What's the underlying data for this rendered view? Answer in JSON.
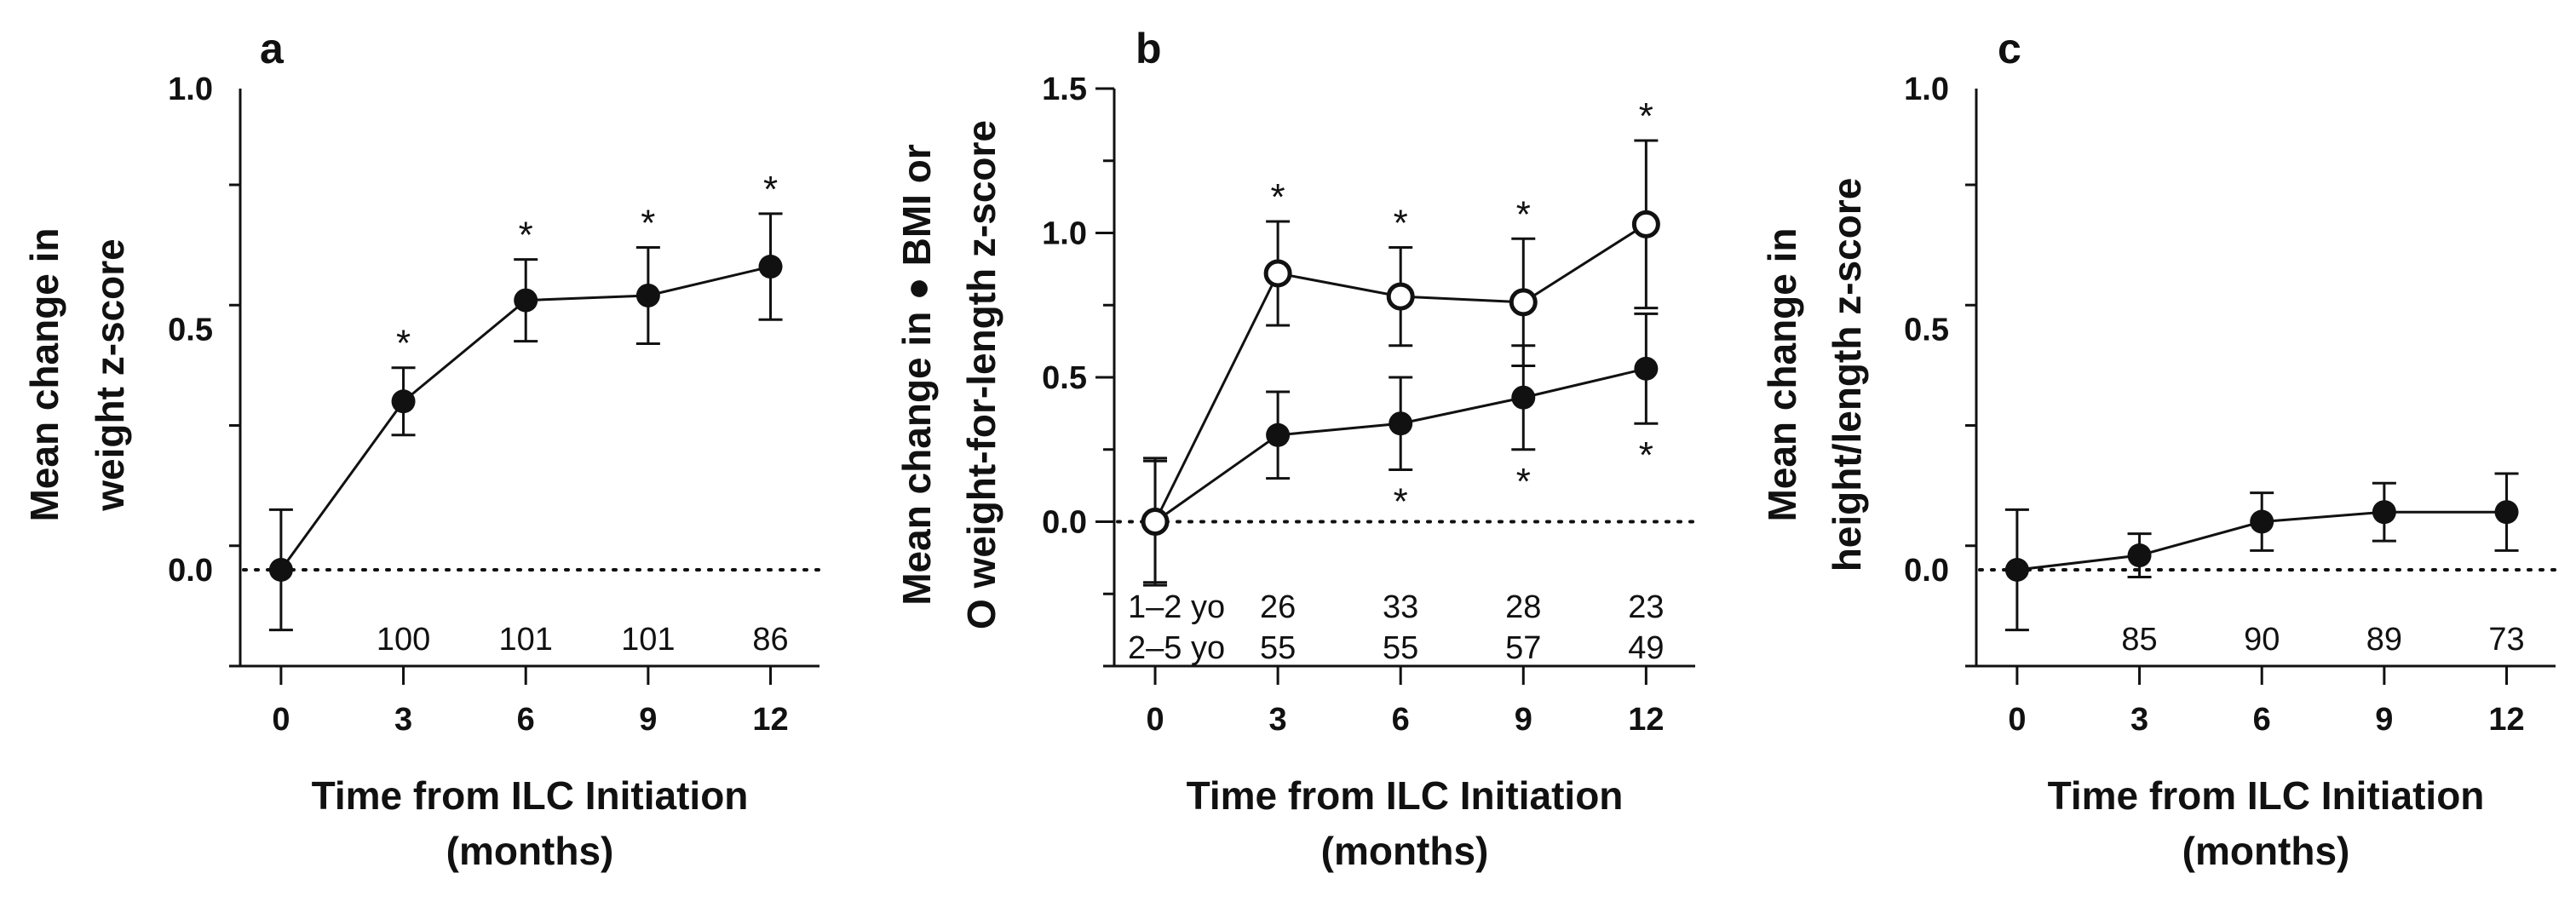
{
  "chart_data": [
    {
      "type": "line",
      "panel": "a",
      "xlabel_line1": "Time from ILC Initiation",
      "xlabel_line2": "(months)",
      "ylabel_line1": "Mean change in",
      "ylabel_line2": "weight z-score",
      "x": [
        0,
        3,
        6,
        9,
        12
      ],
      "x_ticks": [
        "0",
        "3",
        "6",
        "9",
        "12"
      ],
      "xlim": [
        -1,
        13.2
      ],
      "ylim": [
        -0.2,
        1.0
      ],
      "y_ticks": [
        "0.0",
        "0.5",
        "1.0"
      ],
      "y_tick_values": [
        0.0,
        0.5,
        1.0
      ],
      "series": [
        {
          "name": "weight",
          "marker": "filled",
          "values": [
            0.0,
            0.35,
            0.56,
            0.57,
            0.63
          ],
          "err": [
            0.125,
            0.07,
            0.085,
            0.1,
            0.11
          ],
          "sig": [
            "",
            "*",
            "*",
            "*",
            "*"
          ],
          "sig_pos": "above"
        }
      ],
      "n_rows": [
        {
          "label": "",
          "values": [
            "",
            "100",
            "101",
            "101",
            "86"
          ]
        }
      ]
    },
    {
      "type": "line",
      "panel": "b",
      "xlabel_line1": "Time from ILC Initiation",
      "xlabel_line2": "(months)",
      "ylabel_line1": "Mean change in ● BMI or",
      "ylabel_line2": "O weight-for-length z-score",
      "x": [
        0,
        3,
        6,
        9,
        12
      ],
      "x_ticks": [
        "0",
        "3",
        "6",
        "9",
        "12"
      ],
      "xlim": [
        -1,
        13.2
      ],
      "ylim": [
        -0.5,
        1.5
      ],
      "y_ticks": [
        "0.0",
        "0.5",
        "1.0",
        "1.5"
      ],
      "y_tick_values": [
        0.0,
        0.5,
        1.0,
        1.5
      ],
      "series": [
        {
          "name": "BMI",
          "marker": "filled",
          "values": [
            0.0,
            0.3,
            0.34,
            0.43,
            0.53
          ],
          "err": [
            0.21,
            0.15,
            0.16,
            0.18,
            0.19
          ],
          "sig": [
            "",
            "",
            "*",
            "*",
            "*"
          ],
          "sig_pos": "below"
        },
        {
          "name": "weight-for-length",
          "marker": "open",
          "values": [
            0.0,
            0.86,
            0.78,
            0.76,
            1.03
          ],
          "err": [
            0.22,
            0.18,
            0.17,
            0.22,
            0.29
          ],
          "sig": [
            "",
            "*",
            "*",
            "*",
            "*"
          ],
          "sig_pos": "above"
        }
      ],
      "n_rows": [
        {
          "label": "1–2 yo",
          "values": [
            "",
            "26",
            "33",
            "28",
            "23"
          ]
        },
        {
          "label": "2–5 yo",
          "values": [
            "",
            "55",
            "55",
            "57",
            "49"
          ]
        }
      ]
    },
    {
      "type": "line",
      "panel": "c",
      "xlabel_line1": "Time from ILC Initiation",
      "xlabel_line2": "(months)",
      "ylabel_line1": "Mean change in",
      "ylabel_line2": "height/length z-score",
      "x": [
        0,
        3,
        6,
        9,
        12
      ],
      "x_ticks": [
        "0",
        "3",
        "6",
        "9",
        "12"
      ],
      "xlim": [
        -1,
        13.2
      ],
      "ylim": [
        -0.2,
        1.0
      ],
      "y_ticks": [
        "0.0",
        "0.5",
        "1.0"
      ],
      "y_tick_values": [
        0.0,
        0.5,
        1.0
      ],
      "series": [
        {
          "name": "height/length",
          "marker": "filled",
          "values": [
            0.0,
            0.03,
            0.1,
            0.12,
            0.12
          ],
          "err": [
            0.125,
            0.045,
            0.06,
            0.06,
            0.08
          ],
          "sig": [
            "",
            "",
            "",
            "",
            ""
          ],
          "sig_pos": "above"
        }
      ],
      "n_rows": [
        {
          "label": "",
          "values": [
            "",
            "85",
            "90",
            "89",
            "73"
          ]
        }
      ]
    }
  ]
}
